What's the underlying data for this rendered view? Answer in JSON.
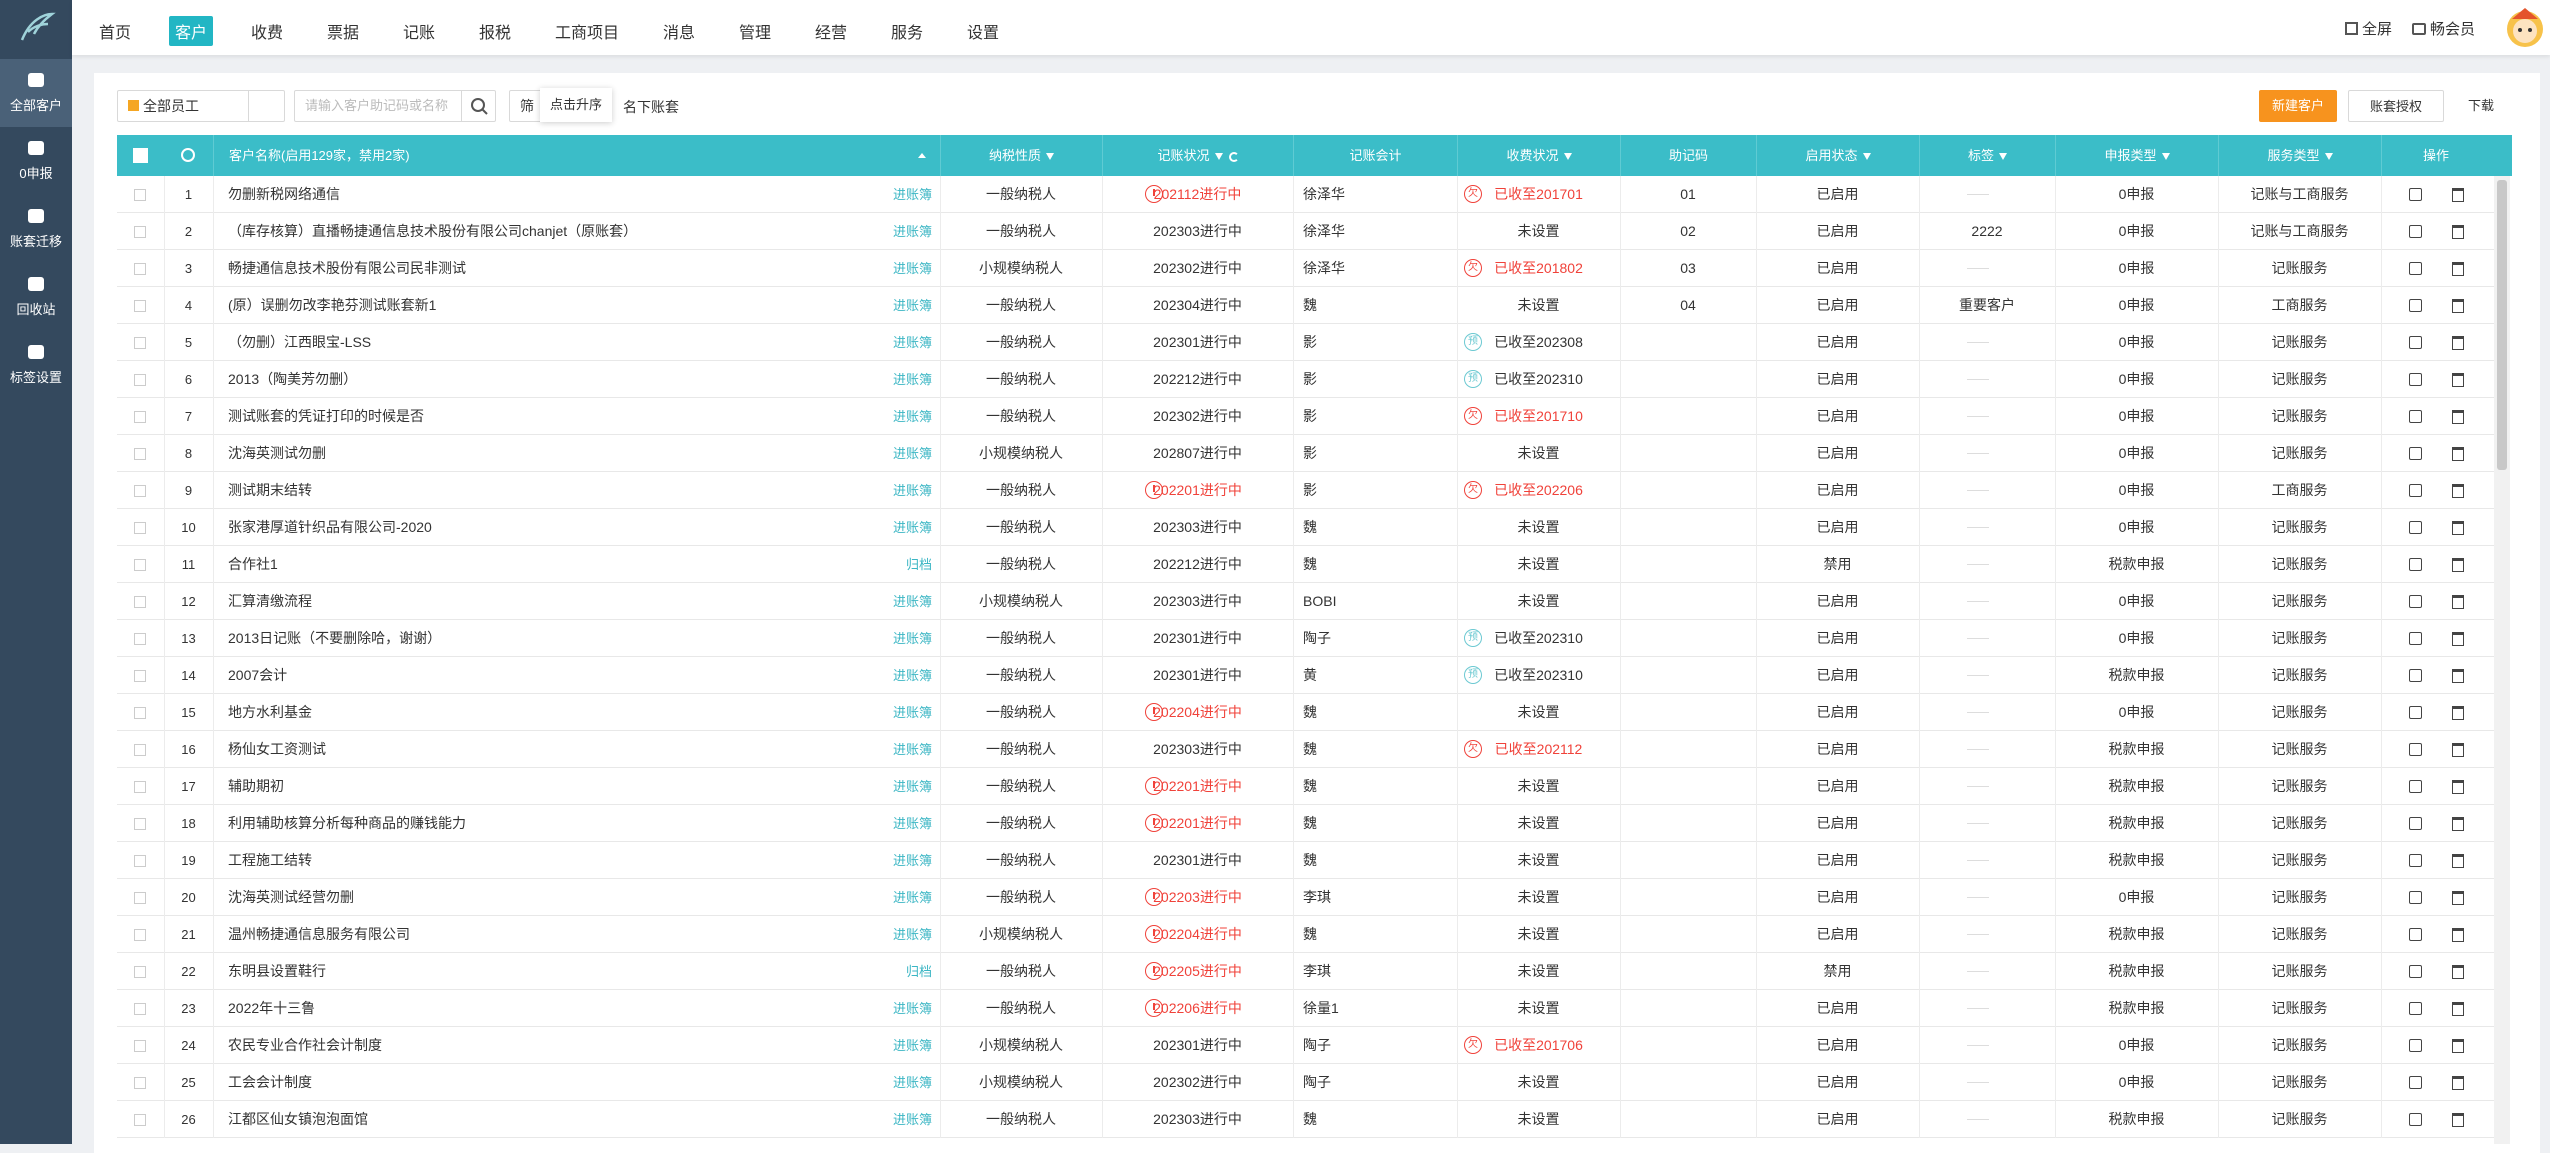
{
  "nav": {
    "items": [
      "首页",
      "客户",
      "收费",
      "票据",
      "记账",
      "报税",
      "工商项目",
      "消息",
      "管理",
      "经营",
      "服务",
      "设置"
    ],
    "active": 1,
    "fullscreen": "全屏",
    "member": "畅会员"
  },
  "sidebar": {
    "items": [
      "全部客户",
      "0申报",
      "账套迁移",
      "回收站",
      "标签设置"
    ],
    "active": 0
  },
  "toolbar": {
    "staff": "全部员工",
    "search_placeholder": "请输入客户助记码或名称",
    "filter": "筛",
    "tooltip": "点击升序",
    "owned": "名下账套",
    "new": "新建客户",
    "auth": "账套授权",
    "download": "下载"
  },
  "table": {
    "headers": [
      "客户名称(启用129家，禁用2家)",
      "纳税性质",
      "记账状况",
      "记账会计",
      "收费状况",
      "助记码",
      "启用状态",
      "标签",
      "申报类型",
      "服务类型",
      "操作"
    ],
    "rows": [
      {
        "cells": [
          1,
          "勿删新税网络通信",
          "进账簿",
          "一般纳税人",
          "202112进行中",
          "徐泽华",
          "已收至201701",
          "01",
          "已启用",
          null,
          "0申报",
          "记账与工商服务"
        ],
        "status_alert": true,
        "fee_icon": "欠",
        "fee_alert": true
      },
      {
        "cells": [
          2,
          "（库存核算）直播畅捷通信息技术股份有限公司chanjet（原账套）",
          "进账簿",
          "一般纳税人",
          "202303进行中",
          "徐泽华",
          "未设置",
          "02",
          "已启用",
          "2222",
          "0申报",
          "记账与工商服务"
        ]
      },
      {
        "cells": [
          3,
          "畅捷通信息技术股份有限公司民非测试",
          "进账簿",
          "小规模纳税人",
          "202302进行中",
          "徐泽华",
          "已收至201802",
          "03",
          "已启用",
          null,
          "0申报",
          "记账服务"
        ],
        "fee_icon": "欠",
        "fee_alert": true
      },
      {
        "cells": [
          4,
          "(原）误删勿改李艳芬测试账套新1",
          "进账簿",
          "一般纳税人",
          "202304进行中",
          "魏",
          "未设置",
          "04",
          "已启用",
          "重要客户",
          "0申报",
          "工商服务"
        ]
      },
      {
        "cells": [
          5,
          "（勿删）江西眼宝-LSS",
          "进账簿",
          "一般纳税人",
          "202301进行中",
          "影",
          "已收至202308",
          null,
          "已启用",
          null,
          "0申报",
          "记账服务"
        ],
        "fee_icon": "预"
      },
      {
        "cells": [
          6,
          "2013（陶美芳勿删）",
          "进账簿",
          "一般纳税人",
          "202212进行中",
          "影",
          "已收至202310",
          null,
          "已启用",
          null,
          "0申报",
          "记账服务"
        ],
        "fee_icon": "预"
      },
      {
        "cells": [
          7,
          "测试账套的凭证打印的时候是否",
          "进账簿",
          "一般纳税人",
          "202302进行中",
          "影",
          "已收至201710",
          null,
          "已启用",
          null,
          "0申报",
          "记账服务"
        ],
        "fee_icon": "欠",
        "fee_alert": true
      },
      {
        "cells": [
          8,
          "沈海英测试勿删",
          "进账簿",
          "小规模纳税人",
          "202807进行中",
          "影",
          "未设置",
          null,
          "已启用",
          null,
          "0申报",
          "记账服务"
        ]
      },
      {
        "cells": [
          9,
          "测试期末结转",
          "进账簿",
          "一般纳税人",
          "202201进行中",
          "影",
          "已收至202206",
          null,
          "已启用",
          null,
          "0申报",
          "工商服务"
        ],
        "status_alert": true,
        "fee_icon": "欠",
        "fee_alert": true
      },
      {
        "cells": [
          10,
          "张家港厚道针织品有限公司-2020",
          "进账簿",
          "一般纳税人",
          "202303进行中",
          "魏",
          "未设置",
          null,
          "已启用",
          null,
          "0申报",
          "记账服务"
        ]
      },
      {
        "cells": [
          11,
          "合作社1",
          "归档",
          "一般纳税人",
          "202212进行中",
          "魏",
          "未设置",
          null,
          "禁用",
          null,
          "税款申报",
          "记账服务"
        ]
      },
      {
        "cells": [
          12,
          "汇算清缴流程",
          "进账簿",
          "小规模纳税人",
          "202303进行中",
          "BOBI",
          "未设置",
          null,
          "已启用",
          null,
          "0申报",
          "记账服务"
        ]
      },
      {
        "cells": [
          13,
          "2013日记账（不要删除哈，谢谢）",
          "进账簿",
          "一般纳税人",
          "202301进行中",
          "陶子",
          "已收至202310",
          null,
          "已启用",
          null,
          "0申报",
          "记账服务"
        ],
        "fee_icon": "预"
      },
      {
        "cells": [
          14,
          "2007会计",
          "进账簿",
          "一般纳税人",
          "202301进行中",
          "黄",
          "已收至202310",
          null,
          "已启用",
          null,
          "税款申报",
          "记账服务"
        ],
        "fee_icon": "预"
      },
      {
        "cells": [
          15,
          "地方水利基金",
          "进账簿",
          "一般纳税人",
          "202204进行中",
          "魏",
          "未设置",
          null,
          "已启用",
          null,
          "0申报",
          "记账服务"
        ],
        "status_alert": true
      },
      {
        "cells": [
          16,
          "杨仙女工资测试",
          "进账簿",
          "一般纳税人",
          "202303进行中",
          "魏",
          "已收至202112",
          null,
          "已启用",
          null,
          "税款申报",
          "记账服务"
        ],
        "fee_icon": "欠",
        "fee_alert": true
      },
      {
        "cells": [
          17,
          "辅助期初",
          "进账簿",
          "一般纳税人",
          "202201进行中",
          "魏",
          "未设置",
          null,
          "已启用",
          null,
          "税款申报",
          "记账服务"
        ],
        "status_alert": true
      },
      {
        "cells": [
          18,
          "利用辅助核算分析每种商品的赚钱能力",
          "进账簿",
          "一般纳税人",
          "202201进行中",
          "魏",
          "未设置",
          null,
          "已启用",
          null,
          "税款申报",
          "记账服务"
        ],
        "status_alert": true
      },
      {
        "cells": [
          19,
          "工程施工结转",
          "进账簿",
          "一般纳税人",
          "202301进行中",
          "魏",
          "未设置",
          null,
          "已启用",
          null,
          "税款申报",
          "记账服务"
        ]
      },
      {
        "cells": [
          20,
          "沈海英测试经营勿删",
          "进账簿",
          "一般纳税人",
          "202203进行中",
          "李琪",
          "未设置",
          null,
          "已启用",
          null,
          "0申报",
          "记账服务"
        ],
        "status_alert": true
      },
      {
        "cells": [
          21,
          "温州畅捷通信息服务有限公司",
          "进账簿",
          "小规模纳税人",
          "202204进行中",
          "魏",
          "未设置",
          null,
          "已启用",
          null,
          "税款申报",
          "记账服务"
        ],
        "status_alert": true
      },
      {
        "cells": [
          22,
          "东明县设置鞋行",
          "归档",
          "一般纳税人",
          "202205进行中",
          "李琪",
          "未设置",
          null,
          "禁用",
          null,
          "税款申报",
          "记账服务"
        ],
        "status_alert": true
      },
      {
        "cells": [
          23,
          "2022年十三鲁",
          "进账簿",
          "一般纳税人",
          "202206进行中",
          "徐量1",
          "未设置",
          null,
          "已启用",
          null,
          "税款申报",
          "记账服务"
        ],
        "status_alert": true
      },
      {
        "cells": [
          24,
          "农民专业合作社会计制度",
          "进账簿",
          "小规模纳税人",
          "202301进行中",
          "陶子",
          "已收至201706",
          null,
          "已启用",
          null,
          "0申报",
          "记账服务"
        ],
        "fee_icon": "欠",
        "fee_alert": true
      },
      {
        "cells": [
          25,
          "工会会计制度",
          "进账簿",
          "小规模纳税人",
          "202302进行中",
          "陶子",
          "未设置",
          null,
          "已启用",
          null,
          "0申报",
          "记账服务"
        ]
      },
      {
        "cells": [
          26,
          "江都区仙女镇泡泡面馆",
          "进账簿",
          "一般纳税人",
          "202303进行中",
          "魏",
          "未设置",
          null,
          "已启用",
          null,
          "税款申报",
          "记账服务"
        ]
      }
    ]
  }
}
